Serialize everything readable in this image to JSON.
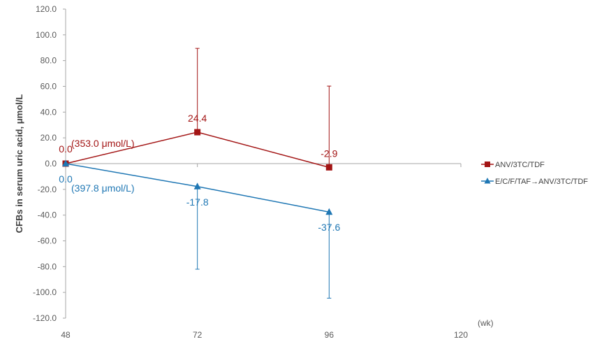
{
  "chart_data": {
    "type": "line",
    "ylabel": "CFBs in serum uric acid, μmol/L",
    "x_unit": "(wk)",
    "x_ticks": [
      "48",
      "72",
      "96",
      "120"
    ],
    "y_ticks": [
      "120.0",
      "100.0",
      "80.0",
      "60.0",
      "40.0",
      "20.0",
      "0.0",
      "-20.0",
      "-40.0",
      "-60.0",
      "-80.0",
      "-100.0",
      "-120.0"
    ],
    "xlim": [
      48,
      120
    ],
    "ylim": [
      -120,
      120
    ],
    "legend_position": "right",
    "series": [
      {
        "name": "ANV/3TC/TDF",
        "color": "#a31515",
        "marker": "square",
        "x": [
          48,
          72,
          96
        ],
        "values": [
          0.0,
          24.4,
          -2.9
        ],
        "labels": [
          "0.0",
          "24.4",
          "-2.9"
        ],
        "error_low": [
          null,
          24.4,
          -2.9
        ],
        "error_high": [
          null,
          89.5,
          60.2
        ],
        "baseline_note": "(353.0 μmol/L)"
      },
      {
        "name": "E/C/F/TAF→ANV/3TC/TDF",
        "color": "#1f77b4",
        "marker": "triangle",
        "x": [
          48,
          72,
          96
        ],
        "values": [
          0.0,
          -17.8,
          -37.6
        ],
        "labels": [
          "0.0",
          "-17.8",
          "-37.6"
        ],
        "error_low": [
          null,
          -82.0,
          -104.5
        ],
        "error_high": [
          null,
          -17.8,
          -37.6
        ],
        "baseline_note": "(397.8 μmol/L)"
      }
    ]
  }
}
